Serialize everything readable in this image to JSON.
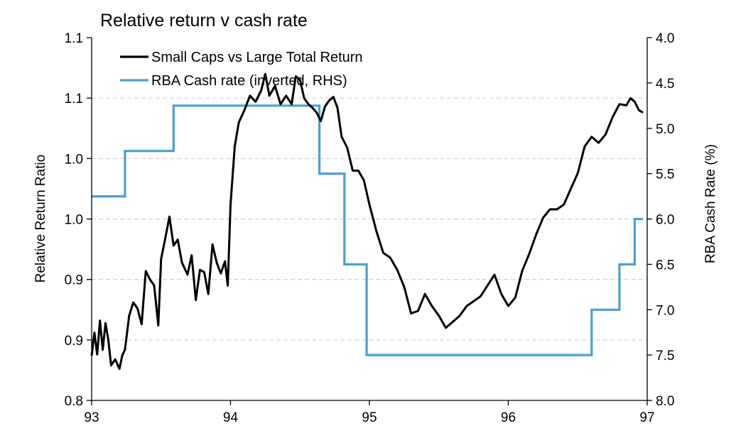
{
  "chart_data": {
    "type": "line",
    "title": "Relative return v cash rate",
    "ylabel": "Relative Return Ratio",
    "y2label": "RBA Cash Rate (%)",
    "xlim": [
      93,
      97
    ],
    "ylim": [
      0.8,
      1.1
    ],
    "y2lim": [
      8.0,
      4.0
    ],
    "y2_inverted": true,
    "x_ticks": [
      "93",
      "94",
      "95",
      "96",
      "97"
    ],
    "y_ticks": [
      "1.1",
      "1.1",
      "1.0",
      "1.0",
      "0.9",
      "0.9",
      "0.8"
    ],
    "y2_ticks": [
      "4.0",
      "4.5",
      "5.0",
      "5.5",
      "6.0",
      "6.5",
      "7.0",
      "7.5",
      "8.0"
    ],
    "grid": "horizontal-dashed",
    "legend_position": "top-left",
    "series": [
      {
        "name": "Small Caps vs Large Total Return",
        "axis": "left",
        "color": "#000000",
        "x": [
          93.0,
          93.02,
          93.04,
          93.06,
          93.08,
          93.1,
          93.12,
          93.14,
          93.17,
          93.2,
          93.22,
          93.24,
          93.27,
          93.3,
          93.33,
          93.36,
          93.39,
          93.42,
          93.45,
          93.48,
          93.5,
          93.53,
          93.56,
          93.59,
          93.62,
          93.65,
          93.69,
          93.72,
          93.75,
          93.78,
          93.81,
          93.84,
          93.87,
          93.9,
          93.93,
          93.96,
          93.98,
          94.0,
          94.03,
          94.06,
          94.1,
          94.14,
          94.18,
          94.22,
          94.25,
          94.28,
          94.32,
          94.36,
          94.4,
          94.44,
          94.47,
          94.5,
          94.53,
          94.56,
          94.59,
          94.62,
          94.65,
          94.68,
          94.71,
          94.74,
          94.77,
          94.8,
          94.84,
          94.88,
          94.92,
          94.96,
          95.0,
          95.05,
          95.1,
          95.15,
          95.2,
          95.25,
          95.3,
          95.35,
          95.4,
          95.45,
          95.5,
          95.55,
          95.6,
          95.65,
          95.7,
          95.75,
          95.8,
          95.85,
          95.9,
          95.95,
          96.0,
          96.05,
          96.1,
          96.15,
          96.2,
          96.25,
          96.3,
          96.35,
          96.4,
          96.45,
          96.5,
          96.55,
          96.6,
          96.65,
          96.7,
          96.75,
          96.8,
          96.85,
          96.88,
          96.91,
          96.94,
          96.97
        ],
        "values": [
          0.837,
          0.856,
          0.838,
          0.866,
          0.842,
          0.864,
          0.85,
          0.829,
          0.834,
          0.826,
          0.837,
          0.842,
          0.87,
          0.881,
          0.876,
          0.863,
          0.907,
          0.9,
          0.895,
          0.862,
          0.917,
          0.934,
          0.952,
          0.928,
          0.933,
          0.914,
          0.904,
          0.92,
          0.883,
          0.908,
          0.906,
          0.888,
          0.929,
          0.914,
          0.905,
          0.915,
          0.895,
          0.962,
          1.01,
          1.03,
          1.04,
          1.052,
          1.047,
          1.056,
          1.07,
          1.052,
          1.06,
          1.045,
          1.052,
          1.045,
          1.068,
          1.065,
          1.05,
          1.045,
          1.042,
          1.038,
          1.031,
          1.043,
          1.048,
          1.051,
          1.042,
          1.018,
          1.009,
          0.99,
          0.99,
          0.982,
          0.962,
          0.94,
          0.922,
          0.918,
          0.908,
          0.894,
          0.872,
          0.874,
          0.888,
          0.878,
          0.87,
          0.86,
          0.865,
          0.87,
          0.878,
          0.882,
          0.886,
          0.895,
          0.904,
          0.888,
          0.878,
          0.885,
          0.907,
          0.921,
          0.937,
          0.951,
          0.958,
          0.958,
          0.962,
          0.975,
          0.988,
          1.01,
          1.018,
          1.013,
          1.02,
          1.034,
          1.045,
          1.044,
          1.05,
          1.047,
          1.04,
          1.038
        ]
      },
      {
        "name": "RBA Cash rate (inverted, RHS)",
        "axis": "right",
        "color": "#4a9fd4",
        "step": true,
        "x": [
          93.0,
          93.24,
          93.24,
          93.59,
          93.59,
          94.64,
          94.64,
          94.82,
          94.82,
          94.98,
          94.98,
          96.6,
          96.6,
          96.8,
          96.8,
          96.91,
          96.91,
          96.97
        ],
        "values": [
          5.75,
          5.75,
          5.25,
          5.25,
          4.75,
          4.75,
          5.5,
          5.5,
          6.5,
          6.5,
          7.5,
          7.5,
          7.0,
          7.0,
          6.5,
          6.5,
          6.0,
          6.0
        ]
      }
    ]
  }
}
